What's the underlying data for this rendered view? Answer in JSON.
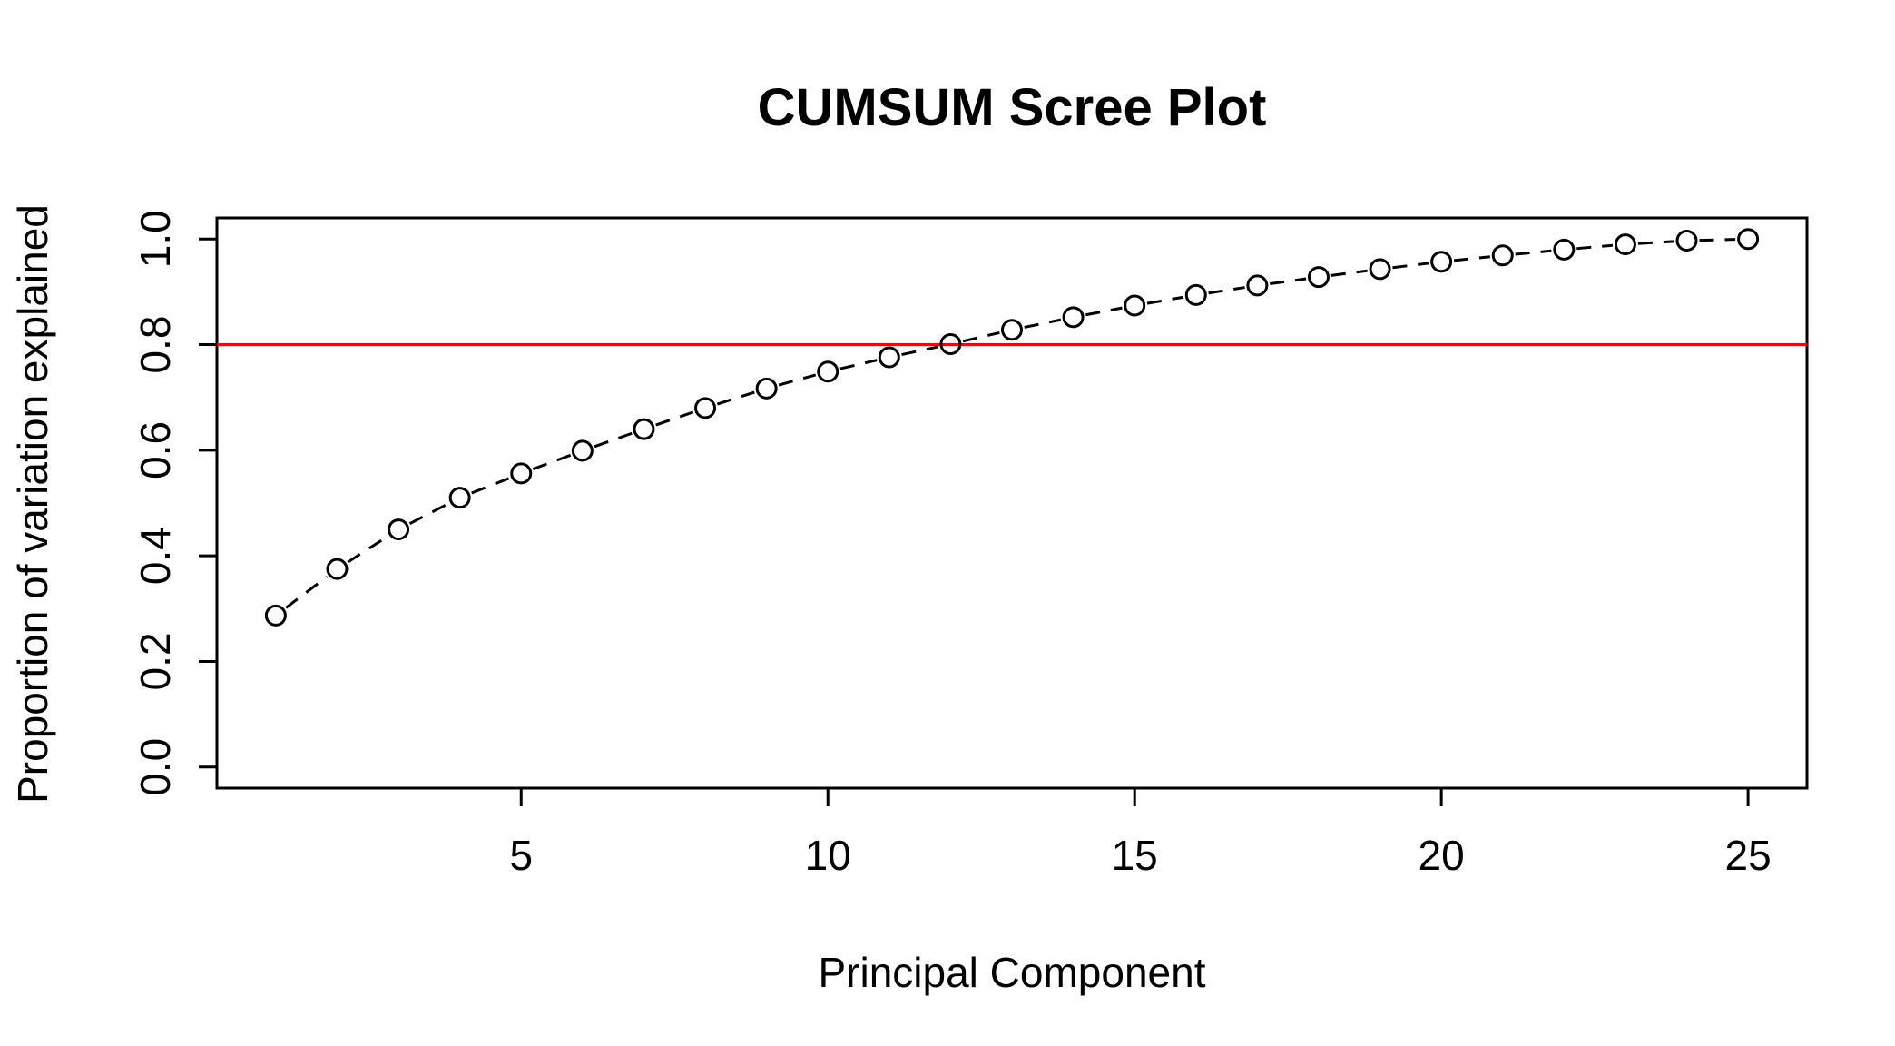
{
  "chart_data": {
    "type": "line",
    "title": "CUMSUM Scree Plot",
    "xlabel": "Principal Component",
    "ylabel": "Proportion of variation explained",
    "x": [
      1,
      2,
      3,
      4,
      5,
      6,
      7,
      8,
      9,
      10,
      11,
      12,
      13,
      14,
      15,
      16,
      17,
      18,
      19,
      20,
      21,
      22,
      23,
      24,
      25
    ],
    "series": [
      {
        "values": [
          0.287,
          0.375,
          0.45,
          0.51,
          0.556,
          0.599,
          0.64,
          0.68,
          0.717,
          0.749,
          0.776,
          0.801,
          0.828,
          0.852,
          0.874,
          0.894,
          0.912,
          0.928,
          0.943,
          0.957,
          0.969,
          0.98,
          0.99,
          0.997,
          1.0
        ]
      }
    ],
    "xlim": [
      0.04,
      25.96
    ],
    "ylim": [
      -0.04,
      1.04
    ],
    "x_ticks": [
      5,
      10,
      15,
      20,
      25
    ],
    "y_ticks": [
      0.0,
      0.2,
      0.4,
      0.6,
      0.8,
      1.0
    ],
    "x_tick_labels": [
      "5",
      "10",
      "15",
      "20",
      "25"
    ],
    "y_tick_labels": [
      "0.0",
      "0.2",
      "0.4",
      "0.6",
      "0.8",
      "1.0"
    ],
    "reference_line": {
      "y": 0.8,
      "color": "#ff0000"
    },
    "line_style": "dashed",
    "marker": "open-circle",
    "grid": false,
    "colors": {
      "points": "#000000",
      "reference": "#ff0000"
    }
  }
}
